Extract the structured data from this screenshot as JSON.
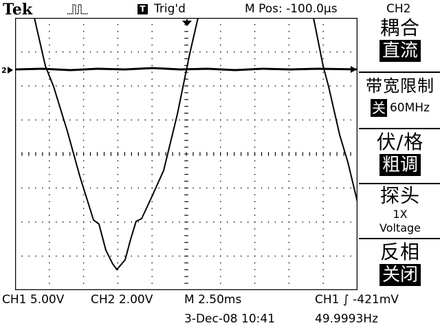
{
  "header": {
    "brand": "Tek",
    "acquire_icon": "run-pulse-icon",
    "trigger_icon_glyph": "T",
    "trigger_status": "Trig'd",
    "position": "M Pos: -100.0µs",
    "channel": "CH2"
  },
  "menu": {
    "coupling_title": "耦合",
    "coupling_value": "直流",
    "bandwidth_title": "带宽限制",
    "bandwidth_value": "关",
    "bandwidth_freq": "60MHz",
    "volts_title": "伏/格",
    "volts_value": "粗调",
    "probe_title": "探头",
    "probe_factor": "1X",
    "probe_type": "Voltage",
    "invert_title": "反相",
    "invert_value": "关闭"
  },
  "status": {
    "ch1_scale": "CH1  5.00V",
    "ch2_scale": "CH2  2.00V",
    "timebase": "M 2.50ms",
    "trigger": "CH1 ∫ -421mV",
    "date": "3-Dec-08 10:41",
    "frequency": "49.9993Hz"
  },
  "colors": {
    "trace": "#000000",
    "background": "#ffffff"
  }
}
